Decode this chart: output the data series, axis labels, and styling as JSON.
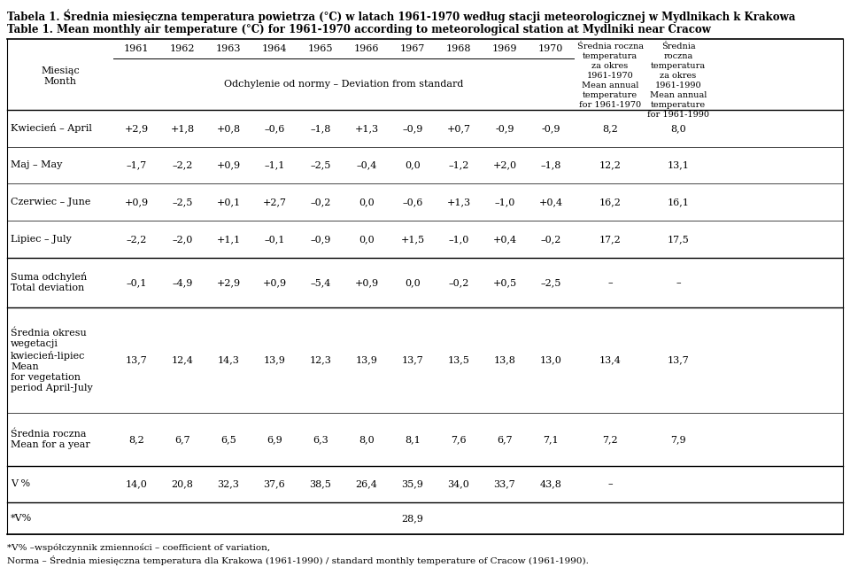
{
  "title_pl": "Tabela 1. Średnia miesięczna temperatura powietrza (°C) w latach 1961-1970 według stacji meteorologicznej w Mydlnikach k Krakowa",
  "title_en": "Table 1. Mean monthly air temperature (°C) for 1961-1970 according to meteorological station at Mydlniki near Cracow",
  "col_headers_years": [
    "1961",
    "1962",
    "1963",
    "1964",
    "1965",
    "1966",
    "1967",
    "1968",
    "1969",
    "1970"
  ],
  "col_header_11": "Srednia roczna\ntemperatura\nza okres\n1961-1970\nMean annual\ntemperature\nfor 1961-1970",
  "col_header_12": "Srednia\nroczna\ntemperatura\nza okres\n1961-1990\nMean annual\ntemperature\nfor 1961-1990",
  "col_header_11_display": "Średnia roczna\ntemperatura\nza okres\n1961-1970\nMean annual\ntemperature\nfor 1961-1970",
  "col_header_12_display": "Średnia\nroczna\ntemperatura\nza okres\n1961-1990\nMean annual\ntemperature\nfor 1961-1990",
  "row_label_col_line1": "Miesiąc",
  "row_label_col_line2": "Month",
  "subheader": "Odchylenie od normy – Deviation from standard",
  "rows": [
    {
      "label": "Kwiecień – April",
      "label_lines": 1,
      "values": [
        "+2,9",
        "+1,8",
        "+0,8",
        "–0,6",
        "–1,8",
        "+1,3",
        "–0,9",
        "+0,7",
        "-0,9",
        "-0,9",
        "8,2",
        "8,0"
      ]
    },
    {
      "label": "Maj – May",
      "label_lines": 1,
      "values": [
        "–1,7",
        "–2,2",
        "+0,9",
        "–1,1",
        "–2,5",
        "–0,4",
        "0,0",
        "–1,2",
        "+2,0",
        "–1,8",
        "12,2",
        "13,1"
      ]
    },
    {
      "label": "Czerwiec – June",
      "label_lines": 1,
      "values": [
        "+0,9",
        "–2,5",
        "+0,1",
        "+2,7",
        "–0,2",
        "0,0",
        "–0,6",
        "+1,3",
        "–1,0",
        "+0,4",
        "16,2",
        "16,1"
      ]
    },
    {
      "label": "Lipiec – July",
      "label_lines": 1,
      "values": [
        "–2,2",
        "–2,0",
        "+1,1",
        "–0,1",
        "–0,9",
        "0,0",
        "+1,5",
        "–1,0",
        "+0,4",
        "–0,2",
        "17,2",
        "17,5"
      ]
    },
    {
      "label": "Suma odchyleń\nTotal deviation",
      "label_lines": 2,
      "values": [
        "–0,1",
        "–4,9",
        "+2,9",
        "+0,9",
        "–5,4",
        "+0,9",
        "0,0",
        "–0,2",
        "+0,5",
        "–2,5",
        "–",
        "–"
      ]
    },
    {
      "label": "Średnia okresu\nwegetacji\nkwiecień-lipiec\nMean\nfor vegetation\nperiod April-July",
      "label_lines": 6,
      "values": [
        "13,7",
        "12,4",
        "14,3",
        "13,9",
        "12,3",
        "13,9",
        "13,7",
        "13,5",
        "13,8",
        "13,0",
        "13,4",
        "13,7"
      ]
    },
    {
      "label": "Średnia roczna\nMean for a year",
      "label_lines": 2,
      "values": [
        "8,2",
        "6,7",
        "6,5",
        "6,9",
        "6,3",
        "8,0",
        "8,1",
        "7,6",
        "6,7",
        "7,1",
        "7,2",
        "7,9"
      ]
    },
    {
      "label": "V %",
      "label_lines": 1,
      "values": [
        "14,0",
        "20,8",
        "32,3",
        "37,6",
        "38,5",
        "26,4",
        "35,9",
        "34,0",
        "33,7",
        "43,8",
        "–",
        ""
      ]
    },
    {
      "label": "*V%",
      "label_lines": 1,
      "values": [
        "",
        "",
        "",
        "",
        "",
        "",
        "28,9",
        "",
        "",
        "",
        "",
        ""
      ]
    }
  ],
  "footnote1": "*V% –współczynnik zmienności – coefficient of variation,",
  "footnote2": "Norma – Średnia miesięczna temperatura dla Krakowa (1961-1990) / standard monthly temperature of Cracow (1961-1990)."
}
